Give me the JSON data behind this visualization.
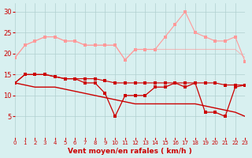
{
  "x": [
    0,
    1,
    2,
    3,
    4,
    5,
    6,
    7,
    8,
    9,
    10,
    11,
    12,
    13,
    14,
    15,
    16,
    17,
    18,
    19,
    20,
    21,
    22,
    23
  ],
  "line1": [
    19,
    22,
    23,
    24,
    24,
    23,
    23,
    22,
    22,
    22,
    22,
    18.5,
    21,
    21,
    21,
    24,
    27,
    30,
    25,
    24,
    23,
    23,
    24,
    18
  ],
  "line2": [
    19,
    22,
    23,
    24,
    24,
    23,
    23,
    22,
    22,
    22,
    22,
    18.5,
    21,
    21,
    21,
    21,
    21,
    21,
    21,
    21,
    21,
    21,
    21,
    19
  ],
  "line3": [
    13,
    15,
    15,
    15,
    14.5,
    14,
    14,
    13,
    13,
    10.5,
    5,
    10,
    10,
    10,
    12,
    12,
    13,
    12,
    13,
    6,
    6,
    5,
    12,
    12.5
  ],
  "line4": [
    13,
    12.5,
    12,
    12,
    12,
    11.5,
    11,
    10.5,
    10,
    9.5,
    9,
    8.5,
    8,
    8,
    8,
    8,
    8,
    8,
    8,
    7.5,
    7,
    6.5,
    6,
    5
  ],
  "line5": [
    13,
    15,
    15,
    15,
    14.5,
    14,
    14,
    14,
    14,
    13.5,
    13,
    13,
    13,
    13,
    13,
    13,
    13,
    13,
    13,
    13,
    13,
    12.5,
    12.5,
    12.5
  ],
  "background": "#d8f0f0",
  "grid_color": "#b0d0d0",
  "line1_color": "#ff9999",
  "line2_color": "#ff9999",
  "line3_color": "#cc0000",
  "line4_color": "#cc0000",
  "line5_color": "#cc0000",
  "xlabel": "Vent moyen/en rafales ( km/h )",
  "xlim": [
    0,
    23
  ],
  "ylim": [
    0,
    32
  ],
  "yticks": [
    5,
    10,
    15,
    20,
    25,
    30
  ],
  "xticks": [
    0,
    1,
    2,
    3,
    4,
    5,
    6,
    7,
    8,
    9,
    10,
    11,
    12,
    13,
    14,
    15,
    16,
    17,
    18,
    19,
    20,
    21,
    22,
    23
  ]
}
